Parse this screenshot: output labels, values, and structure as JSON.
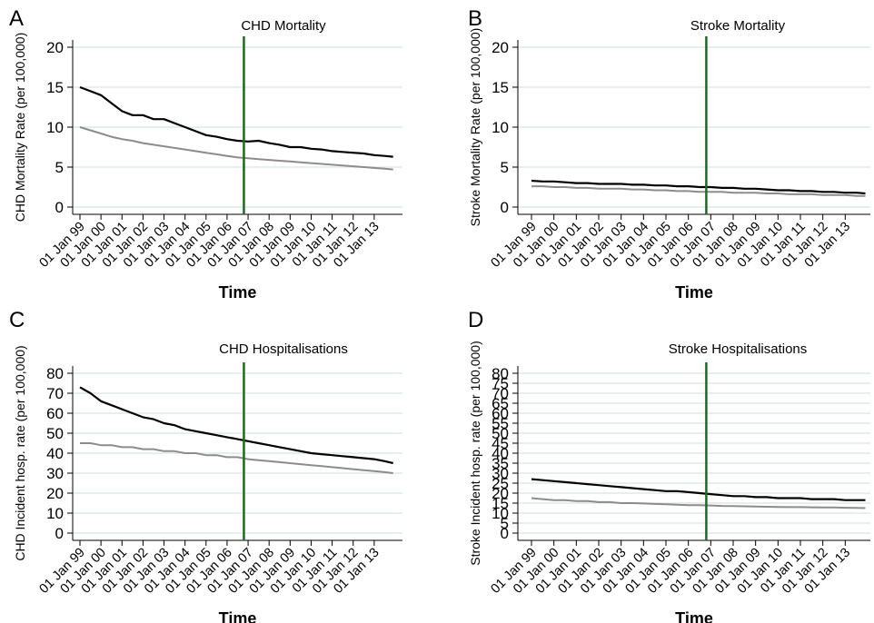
{
  "figure": {
    "background": "#ffffff"
  },
  "colors": {
    "series_dark": "#000000",
    "series_light": "#8c8c8c",
    "intervention_line": "#1e6b1e",
    "grid": "#dfe8e8",
    "axis": "#000000"
  },
  "chart_data": [
    {
      "panel": "A",
      "type": "line",
      "title": "CHD Mortality",
      "xlabel": "Time",
      "ylabel": "CHD Mortality Rate (per 100,000)",
      "ylim": [
        0,
        20
      ],
      "yticks": [
        0,
        5,
        10,
        15,
        20
      ],
      "xlim": [
        1999.0,
        2014.0
      ],
      "x_tick_values": [
        1999,
        2000,
        2001,
        2002,
        2003,
        2004,
        2005,
        2006,
        2007,
        2008,
        2009,
        2010,
        2011,
        2012,
        2013
      ],
      "x_tick_labels": [
        "01 Jan 99",
        "01 Jan 00",
        "01 Jan 01",
        "01 Jan 02",
        "01 Jan 03",
        "01 Jan 04",
        "01 Jan 05",
        "01 Jan 06",
        "01 Jan 07",
        "01 Jan 08",
        "01 Jan 09",
        "01 Jan 10",
        "01 Jan 11",
        "01 Jan 12",
        "01 Jan 13"
      ],
      "grid": true,
      "vertical_line_x": 2006.8,
      "series": [
        {
          "color": "#000000",
          "x": [
            1999.0,
            1999.5,
            2000.0,
            2000.5,
            2001.0,
            2001.5,
            2002.0,
            2002.5,
            2003.0,
            2003.5,
            2004.0,
            2004.5,
            2005.0,
            2005.5,
            2006.0,
            2006.5,
            2007.0,
            2007.5,
            2008.0,
            2008.5,
            2009.0,
            2009.5,
            2010.0,
            2010.5,
            2011.0,
            2011.5,
            2012.0,
            2012.5,
            2013.0,
            2013.5,
            2013.9
          ],
          "values": [
            15.0,
            14.5,
            14.0,
            13.0,
            12.0,
            11.5,
            11.5,
            11.0,
            11.0,
            10.5,
            10.0,
            9.5,
            9.0,
            8.8,
            8.5,
            8.3,
            8.2,
            8.3,
            8.0,
            7.8,
            7.5,
            7.5,
            7.3,
            7.2,
            7.0,
            6.9,
            6.8,
            6.7,
            6.5,
            6.4,
            6.3
          ]
        },
        {
          "color": "#8c8c8c",
          "x": [
            1999.0,
            1999.5,
            2000.0,
            2000.5,
            2001.0,
            2001.5,
            2002.0,
            2002.5,
            2003.0,
            2003.5,
            2004.0,
            2004.5,
            2005.0,
            2005.5,
            2006.0,
            2006.5,
            2007.0,
            2007.5,
            2008.0,
            2008.5,
            2009.0,
            2009.5,
            2010.0,
            2010.5,
            2011.0,
            2011.5,
            2012.0,
            2012.5,
            2013.0,
            2013.5,
            2013.9
          ],
          "values": [
            10.0,
            9.6,
            9.2,
            8.8,
            8.5,
            8.3,
            8.0,
            7.8,
            7.6,
            7.4,
            7.2,
            7.0,
            6.8,
            6.6,
            6.4,
            6.2,
            6.1,
            6.0,
            5.9,
            5.8,
            5.7,
            5.6,
            5.5,
            5.4,
            5.3,
            5.2,
            5.1,
            5.0,
            4.9,
            4.8,
            4.7
          ]
        }
      ]
    },
    {
      "panel": "B",
      "type": "line",
      "title": "Stroke Mortality",
      "xlabel": "Time",
      "ylabel": "Stroke Mortality Rate (per 100,000)",
      "ylim": [
        0,
        20
      ],
      "yticks": [
        0,
        5,
        10,
        15,
        20
      ],
      "xlim": [
        1999.0,
        2014.0
      ],
      "x_tick_values": [
        1999,
        2000,
        2001,
        2002,
        2003,
        2004,
        2005,
        2006,
        2007,
        2008,
        2009,
        2010,
        2011,
        2012,
        2013
      ],
      "x_tick_labels": [
        "01 Jan 99",
        "01 Jan 00",
        "01 Jan 01",
        "01 Jan 02",
        "01 Jan 03",
        "01 Jan 04",
        "01 Jan 05",
        "01 Jan 06",
        "01 Jan 07",
        "01 Jan 08",
        "01 Jan 09",
        "01 Jan 10",
        "01 Jan 11",
        "01 Jan 12",
        "01 Jan 13"
      ],
      "grid": true,
      "vertical_line_x": 2006.8,
      "series": [
        {
          "color": "#000000",
          "x": [
            1999.0,
            1999.5,
            2000.0,
            2000.5,
            2001.0,
            2001.5,
            2002.0,
            2002.5,
            2003.0,
            2003.5,
            2004.0,
            2004.5,
            2005.0,
            2005.5,
            2006.0,
            2006.5,
            2007.0,
            2007.5,
            2008.0,
            2008.5,
            2009.0,
            2009.5,
            2010.0,
            2010.5,
            2011.0,
            2011.5,
            2012.0,
            2012.5,
            2013.0,
            2013.5,
            2013.9
          ],
          "values": [
            3.3,
            3.2,
            3.2,
            3.1,
            3.0,
            3.0,
            2.9,
            2.9,
            2.9,
            2.8,
            2.8,
            2.7,
            2.7,
            2.6,
            2.6,
            2.5,
            2.5,
            2.4,
            2.4,
            2.3,
            2.3,
            2.2,
            2.1,
            2.1,
            2.0,
            2.0,
            1.9,
            1.9,
            1.8,
            1.8,
            1.7
          ]
        },
        {
          "color": "#8c8c8c",
          "x": [
            1999.0,
            1999.5,
            2000.0,
            2000.5,
            2001.0,
            2001.5,
            2002.0,
            2002.5,
            2003.0,
            2003.5,
            2004.0,
            2004.5,
            2005.0,
            2005.5,
            2006.0,
            2006.5,
            2007.0,
            2007.5,
            2008.0,
            2008.5,
            2009.0,
            2009.5,
            2010.0,
            2010.5,
            2011.0,
            2011.5,
            2012.0,
            2012.5,
            2013.0,
            2013.5,
            2013.9
          ],
          "values": [
            2.6,
            2.6,
            2.5,
            2.5,
            2.4,
            2.4,
            2.3,
            2.3,
            2.3,
            2.2,
            2.2,
            2.1,
            2.1,
            2.0,
            2.0,
            1.9,
            1.9,
            1.9,
            1.8,
            1.8,
            1.8,
            1.7,
            1.7,
            1.6,
            1.6,
            1.6,
            1.5,
            1.5,
            1.5,
            1.4,
            1.4
          ]
        }
      ]
    },
    {
      "panel": "C",
      "type": "line",
      "title": "CHD Hospitalisations",
      "xlabel": "Time",
      "ylabel": "CHD Incident hosp. rate (per 100,000)",
      "ylim": [
        0,
        80
      ],
      "yticks": [
        0,
        10,
        20,
        30,
        40,
        50,
        60,
        70,
        80
      ],
      "xlim": [
        1999.0,
        2014.0
      ],
      "x_tick_values": [
        1999,
        2000,
        2001,
        2002,
        2003,
        2004,
        2005,
        2006,
        2007,
        2008,
        2009,
        2010,
        2011,
        2012,
        2013
      ],
      "x_tick_labels": [
        "01 Jan 99",
        "01 Jan 00",
        "01 Jan 01",
        "01 Jan 02",
        "01 Jan 03",
        "01 Jan 04",
        "01 Jan 05",
        "01 Jan 06",
        "01 Jan 07",
        "01 Jan 08",
        "01 Jan 09",
        "01 Jan 10",
        "01 Jan 11",
        "01 Jan 12",
        "01 Jan 13"
      ],
      "grid": true,
      "vertical_line_x": 2006.8,
      "series": [
        {
          "color": "#000000",
          "x": [
            1999.0,
            1999.5,
            2000.0,
            2000.5,
            2001.0,
            2001.5,
            2002.0,
            2002.5,
            2003.0,
            2003.5,
            2004.0,
            2004.5,
            2005.0,
            2005.5,
            2006.0,
            2006.5,
            2007.0,
            2007.5,
            2008.0,
            2008.5,
            2009.0,
            2009.5,
            2010.0,
            2010.5,
            2011.0,
            2011.5,
            2012.0,
            2012.5,
            2013.0,
            2013.5,
            2013.9
          ],
          "values": [
            73,
            70,
            66,
            64,
            62,
            60,
            58,
            57,
            55,
            54,
            52,
            51,
            50,
            49,
            48,
            47,
            46,
            45,
            44,
            43,
            42,
            41,
            40,
            39.5,
            39,
            38.5,
            38,
            37.5,
            37,
            36,
            35
          ]
        },
        {
          "color": "#8c8c8c",
          "x": [
            1999.0,
            1999.5,
            2000.0,
            2000.5,
            2001.0,
            2001.5,
            2002.0,
            2002.5,
            2003.0,
            2003.5,
            2004.0,
            2004.5,
            2005.0,
            2005.5,
            2006.0,
            2006.5,
            2007.0,
            2007.5,
            2008.0,
            2008.5,
            2009.0,
            2009.5,
            2010.0,
            2010.5,
            2011.0,
            2011.5,
            2012.0,
            2012.5,
            2013.0,
            2013.5,
            2013.9
          ],
          "values": [
            45,
            45,
            44,
            44,
            43,
            43,
            42,
            42,
            41,
            41,
            40,
            40,
            39,
            39,
            38,
            38,
            37,
            36.5,
            36,
            35.5,
            35,
            34.5,
            34,
            33.5,
            33,
            32.5,
            32,
            31.5,
            31,
            30.5,
            30
          ]
        }
      ]
    },
    {
      "panel": "D",
      "type": "line",
      "title": "Stroke Hospitalisations",
      "xlabel": "Time",
      "ylabel": "Stroke Incident hosp. rate (per 100,000)",
      "ylim": [
        0,
        80
      ],
      "yticks": [
        0,
        5,
        10,
        15,
        20,
        25,
        30,
        35,
        40,
        45,
        50,
        55,
        60,
        65,
        70,
        75,
        80
      ],
      "xlim": [
        1999.0,
        2014.0
      ],
      "x_tick_values": [
        1999,
        2000,
        2001,
        2002,
        2003,
        2004,
        2005,
        2006,
        2007,
        2008,
        2009,
        2010,
        2011,
        2012,
        2013
      ],
      "x_tick_labels": [
        "01 Jan 99",
        "01 Jan 00",
        "01 Jan 01",
        "01 Jan 02",
        "01 Jan 03",
        "01 Jan 04",
        "01 Jan 05",
        "01 Jan 06",
        "01 Jan 07",
        "01 Jan 08",
        "01 Jan 09",
        "01 Jan 10",
        "01 Jan 11",
        "01 Jan 12",
        "01 Jan 13"
      ],
      "grid": true,
      "vertical_line_x": 2006.8,
      "series": [
        {
          "color": "#000000",
          "x": [
            1999.0,
            1999.5,
            2000.0,
            2000.5,
            2001.0,
            2001.5,
            2002.0,
            2002.5,
            2003.0,
            2003.5,
            2004.0,
            2004.5,
            2005.0,
            2005.5,
            2006.0,
            2006.5,
            2007.0,
            2007.5,
            2008.0,
            2008.5,
            2009.0,
            2009.5,
            2010.0,
            2010.5,
            2011.0,
            2011.5,
            2012.0,
            2012.5,
            2013.0,
            2013.5,
            2013.9
          ],
          "values": [
            27,
            26.5,
            26,
            25.5,
            25,
            24.5,
            24,
            23.5,
            23,
            22.5,
            22,
            21.5,
            21,
            21,
            20.5,
            20,
            19.5,
            19,
            18.5,
            18.5,
            18,
            18,
            17.5,
            17.5,
            17.5,
            17,
            17,
            17,
            16.5,
            16.5,
            16.5
          ]
        },
        {
          "color": "#8c8c8c",
          "x": [
            1999.0,
            1999.5,
            2000.0,
            2000.5,
            2001.0,
            2001.5,
            2002.0,
            2002.5,
            2003.0,
            2003.5,
            2004.0,
            2004.5,
            2005.0,
            2005.5,
            2006.0,
            2006.5,
            2007.0,
            2007.5,
            2008.0,
            2008.5,
            2009.0,
            2009.5,
            2010.0,
            2010.5,
            2011.0,
            2011.5,
            2012.0,
            2012.5,
            2013.0,
            2013.5,
            2013.9
          ],
          "values": [
            17.5,
            17,
            16.5,
            16.5,
            16,
            16,
            15.5,
            15.5,
            15,
            15,
            14.8,
            14.6,
            14.4,
            14.2,
            14,
            14,
            13.8,
            13.6,
            13.5,
            13.4,
            13.3,
            13.2,
            13.1,
            13,
            13,
            12.9,
            12.8,
            12.8,
            12.7,
            12.6,
            12.5
          ]
        }
      ]
    }
  ]
}
